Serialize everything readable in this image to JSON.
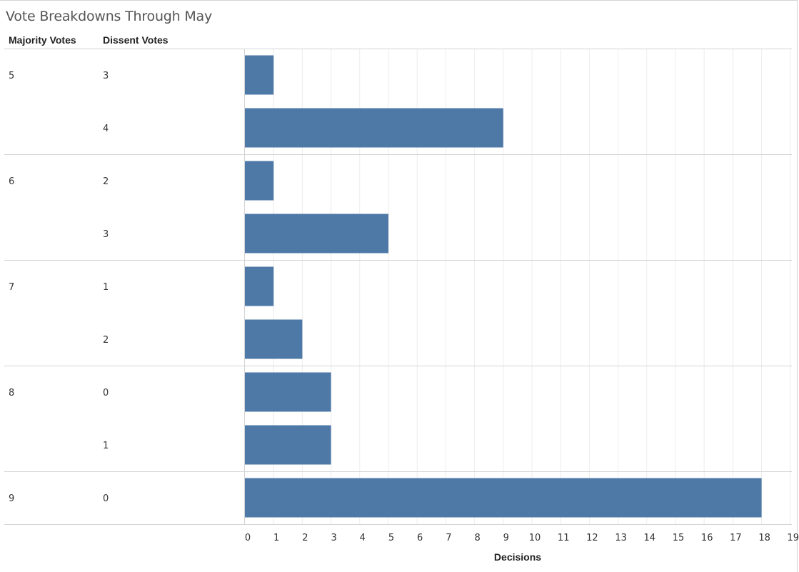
{
  "title": "Vote Breakdowns Through May",
  "headers": {
    "majority": "Majority Votes",
    "dissent": "Dissent Votes"
  },
  "colors": {
    "bar": "#4e79a7",
    "grid": "#ececec",
    "divider": "#d4d4d4"
  },
  "chart_data": {
    "type": "bar",
    "orientation": "horizontal",
    "xlabel": "Decisions",
    "xlim": [
      0,
      19
    ],
    "xticks": [
      0,
      1,
      2,
      3,
      4,
      5,
      6,
      7,
      8,
      9,
      10,
      11,
      12,
      13,
      14,
      15,
      16,
      17,
      18,
      19
    ],
    "grid": true,
    "groups": [
      {
        "majority": "5",
        "rows": [
          {
            "dissent": "3",
            "value": 1
          },
          {
            "dissent": "4",
            "value": 9
          }
        ]
      },
      {
        "majority": "6",
        "rows": [
          {
            "dissent": "2",
            "value": 1
          },
          {
            "dissent": "3",
            "value": 5
          }
        ]
      },
      {
        "majority": "7",
        "rows": [
          {
            "dissent": "1",
            "value": 1
          },
          {
            "dissent": "2",
            "value": 2
          }
        ]
      },
      {
        "majority": "8",
        "rows": [
          {
            "dissent": "0",
            "value": 3
          },
          {
            "dissent": "1",
            "value": 3
          }
        ]
      },
      {
        "majority": "9",
        "rows": [
          {
            "dissent": "0",
            "value": 18
          }
        ]
      }
    ]
  }
}
